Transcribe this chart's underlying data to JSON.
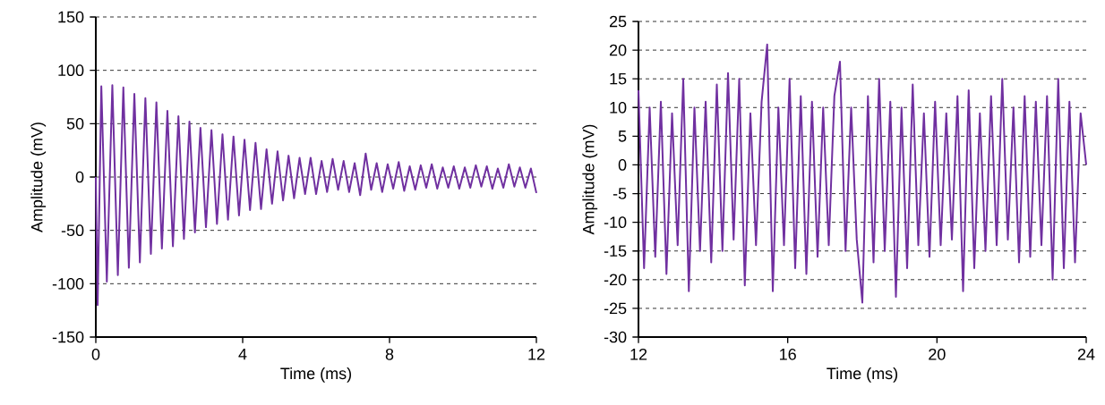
{
  "chart_data": [
    {
      "type": "line",
      "xlabel": "Time (ms)",
      "ylabel": "Amplitude (mV)",
      "xlim": [
        0,
        12
      ],
      "ylim": [
        -150,
        150
      ],
      "xticks": [
        0,
        4,
        8,
        12
      ],
      "yticks": [
        -150,
        -100,
        -50,
        0,
        50,
        100,
        150
      ],
      "grid": "y",
      "color": "#7030a0",
      "x": [
        0,
        0.05,
        0.15,
        0.3,
        0.45,
        0.6,
        0.75,
        0.9,
        1.05,
        1.2,
        1.35,
        1.5,
        1.65,
        1.8,
        1.95,
        2.1,
        2.25,
        2.4,
        2.55,
        2.7,
        2.85,
        3.0,
        3.15,
        3.3,
        3.45,
        3.6,
        3.75,
        3.9,
        4.05,
        4.2,
        4.35,
        4.5,
        4.65,
        4.8,
        4.95,
        5.1,
        5.25,
        5.4,
        5.55,
        5.7,
        5.85,
        6.0,
        6.15,
        6.3,
        6.45,
        6.6,
        6.75,
        6.9,
        7.05,
        7.2,
        7.35,
        7.5,
        7.65,
        7.8,
        7.95,
        8.1,
        8.25,
        8.4,
        8.55,
        8.7,
        8.85,
        9.0,
        9.15,
        9.3,
        9.45,
        9.6,
        9.75,
        9.9,
        10.05,
        10.2,
        10.35,
        10.5,
        10.65,
        10.8,
        10.95,
        11.1,
        11.25,
        11.4,
        11.55,
        11.7,
        11.85,
        12.0
      ],
      "values": [
        0,
        -120,
        85,
        -98,
        86,
        -92,
        84,
        -85,
        78,
        -80,
        74,
        -72,
        70,
        -67,
        62,
        -65,
        57,
        -58,
        52,
        -52,
        46,
        -47,
        44,
        -44,
        40,
        -40,
        38,
        -36,
        35,
        -31,
        32,
        -30,
        26,
        -25,
        24,
        -22,
        20,
        -20,
        18,
        -16,
        18,
        -16,
        15,
        -14,
        17,
        -12,
        15,
        -14,
        13,
        -17,
        22,
        -12,
        13,
        -14,
        12,
        -11,
        14,
        -13,
        10,
        -12,
        11,
        -10,
        12,
        -11,
        9,
        -10,
        10,
        -11,
        9,
        -10,
        11,
        -9,
        10,
        -11,
        8,
        -10,
        12,
        -9,
        9,
        -10,
        8,
        -15
      ]
    },
    {
      "type": "line",
      "xlabel": "Time (ms)",
      "ylabel": "Amplitude (mV)",
      "xlim": [
        12,
        24
      ],
      "ylim": [
        -30,
        25
      ],
      "xticks": [
        12,
        16,
        20,
        24
      ],
      "yticks": [
        -30,
        -25,
        -20,
        -15,
        -10,
        -5,
        0,
        5,
        10,
        15,
        20,
        25
      ],
      "grid": "y",
      "color": "#7030a0",
      "x": [
        12,
        12.15,
        12.3,
        12.45,
        12.6,
        12.75,
        12.9,
        13.05,
        13.2,
        13.35,
        13.5,
        13.65,
        13.8,
        13.95,
        14.1,
        14.25,
        14.4,
        14.55,
        14.7,
        14.85,
        15.0,
        15.15,
        15.3,
        15.45,
        15.6,
        15.75,
        15.9,
        16.05,
        16.2,
        16.35,
        16.5,
        16.65,
        16.8,
        16.95,
        17.1,
        17.25,
        17.4,
        17.55,
        17.7,
        17.85,
        18.0,
        18.15,
        18.3,
        18.45,
        18.6,
        18.75,
        18.9,
        19.05,
        19.2,
        19.35,
        19.5,
        19.65,
        19.8,
        19.95,
        20.1,
        20.25,
        20.4,
        20.55,
        20.7,
        20.85,
        21.0,
        21.15,
        21.3,
        21.45,
        21.6,
        21.75,
        21.9,
        22.05,
        22.2,
        22.35,
        22.5,
        22.65,
        22.8,
        22.95,
        23.1,
        23.25,
        23.4,
        23.55,
        23.7,
        23.85,
        24.0
      ],
      "values": [
        13,
        -18,
        10,
        -16,
        11,
        -19,
        9,
        -14,
        15,
        -22,
        10,
        -15,
        11,
        -17,
        14,
        -15,
        16,
        -13,
        15,
        -21,
        9,
        -14,
        11,
        21,
        -22,
        10,
        -14,
        15,
        -18,
        12,
        -19,
        11,
        -16,
        10,
        -14,
        12,
        18,
        -15,
        10,
        -13,
        -24,
        12,
        -17,
        15,
        -15,
        11,
        -23,
        10,
        -18,
        14,
        -14,
        9,
        -16,
        11,
        -14,
        9,
        -13,
        12,
        -22,
        13,
        -18,
        9,
        -15,
        12,
        -14,
        15,
        -13,
        10,
        -17,
        12,
        -16,
        11,
        -14,
        12,
        -20,
        15,
        -18,
        11,
        -17,
        9,
        0
      ]
    }
  ]
}
